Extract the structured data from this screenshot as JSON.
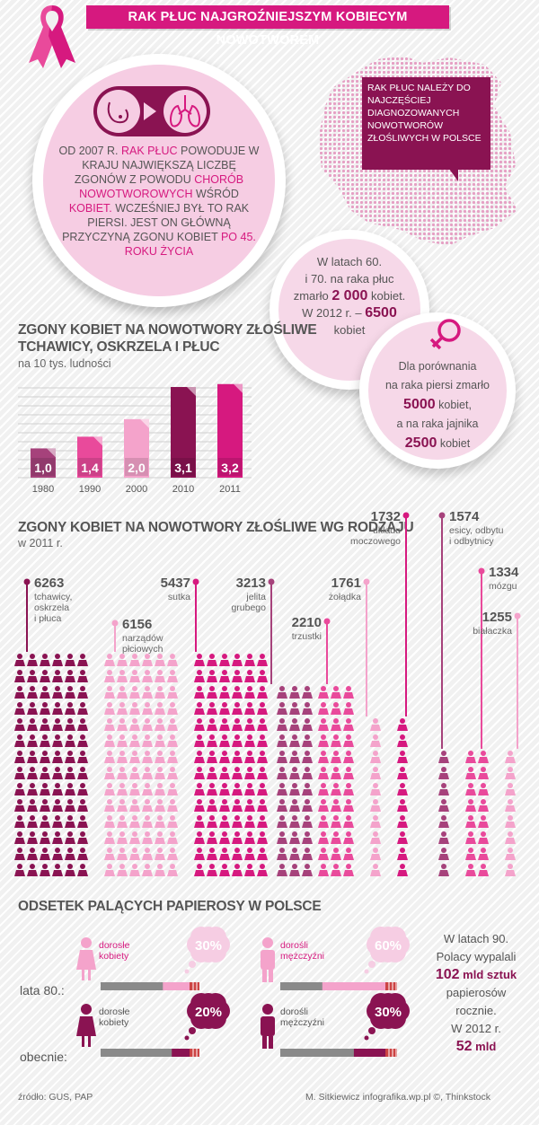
{
  "header": {
    "title": "RAK PŁUC NAJGROŹNIEJSZYM KOBIECYM NOWOTWOREM",
    "ribbon_icon": "pink-ribbon-icon",
    "brand_color": "#d6197f"
  },
  "intro": {
    "line1": "OD 2007 R. ",
    "hl1": "RAK PŁUC",
    "line2": " POWODUJE W KRAJU NAJWIĘKSZĄ LICZBĘ ZGONÓW Z POWODU ",
    "hl2": "CHORÓB NOWOTWOROWYCH",
    "line3": " WŚRÓD ",
    "hl3": "KOBIET.",
    "line4": " WCZEŚNIEJ BYŁ TO RAK PIERSI. JEST ON GŁÓWNĄ PRZYCZYNĄ ZGONU KOBIET ",
    "hl4": "PO 45. ROKU ŻYCIA"
  },
  "map_box": {
    "text": "RAK PŁUC NALEŻY DO NAJCZĘŚCIEJ DIAGNOZOWANYCH NOWOTWORÓW ZŁOŚLIWYCH W POLSCE"
  },
  "stat_60s": {
    "t1": "W latach 60.",
    "t2": "i 70. na raka płuc",
    "t3": "zmarło ",
    "n1": "2 000",
    "t4": " kobiet.",
    "t5": "W 2012 r. –",
    "n2": "6500",
    "t6": "kobiet"
  },
  "stat_compare": {
    "t1": "Dla porównania",
    "t2": "na raka piersi zmarło",
    "n1": "5000",
    "t3": " kobiet,",
    "t4": "a na raka jajnika",
    "n2": "2500",
    "t5": " kobiet"
  },
  "bar_section": {
    "title1": "ZGONY KOBIET NA NOWOTWORY ZŁOŚLIWE",
    "title2": "TCHAWICY, OSKRZELA I PŁUC",
    "subtitle": "na 10 tys. ludności"
  },
  "chart_data": {
    "type": "bar",
    "categories": [
      "1980",
      "1990",
      "2000",
      "2010",
      "2011"
    ],
    "values": [
      1.0,
      1.4,
      2.0,
      3.1,
      3.2
    ],
    "value_labels": [
      "1,0",
      "1,4",
      "2,0",
      "3,1",
      "3,2"
    ],
    "colors": [
      "#a6427b",
      "#e94a9b",
      "#f4a3cb",
      "#8a1352",
      "#d6197f"
    ],
    "ylim": [
      0,
      3.5
    ],
    "grid": true
  },
  "people_section": {
    "title": "ZGONY KOBIET NA NOWOTWORY ZŁOŚLIWE WG RODZAJU",
    "subtitle": "w 2011 r.",
    "categories": [
      {
        "value": "6263",
        "label": [
          "tchawicy,",
          "oskrzela",
          "i płuca"
        ]
      },
      {
        "value": "6156",
        "label": [
          "narządów",
          "płciowych"
        ]
      },
      {
        "value": "5437",
        "label": [
          "sutka"
        ]
      },
      {
        "value": "3213",
        "label": [
          "jelita",
          "grubego"
        ]
      },
      {
        "value": "2210",
        "label": [
          "trzustki"
        ]
      },
      {
        "value": "1761",
        "label": [
          "żołądka"
        ]
      },
      {
        "value": "1732",
        "label": [
          "układu",
          "moczowego"
        ]
      },
      {
        "value": "1574",
        "label": [
          "esicy, odbytu",
          "i odbytnicy"
        ]
      },
      {
        "value": "1334",
        "label": [
          "mózgu"
        ]
      },
      {
        "value": "1255",
        "label": [
          "białaczka"
        ]
      }
    ]
  },
  "smoking_section": {
    "title": "ODSETEK PALĄCYCH PAPIEROSY W POLSCE",
    "row1_label": "lata 80.:",
    "row2_label": "obecnie:",
    "women_label": [
      "dorosłe",
      "kobiety"
    ],
    "men_label": [
      "dorośli",
      "mężczyźni"
    ],
    "women_80": "30%",
    "men_80": "60%",
    "women_now": "20%",
    "men_now": "30%",
    "values": {
      "women_80": 30,
      "men_80": 60,
      "women_now": 20,
      "men_now": 30
    }
  },
  "smoking_side": {
    "t1": "W latach 90.",
    "t2": "Polacy wypalali",
    "n1": "102",
    "u1": " mld sztuk",
    "t3": "papierosów",
    "t4": "rocznie.",
    "t5": "W 2012 r.",
    "n2": "52",
    "u2": " mld"
  },
  "footer": {
    "source": "źródło: GUS, PAP",
    "credit": "M. Sitkiewicz infografika.wp.pl ©, Thinkstock"
  }
}
